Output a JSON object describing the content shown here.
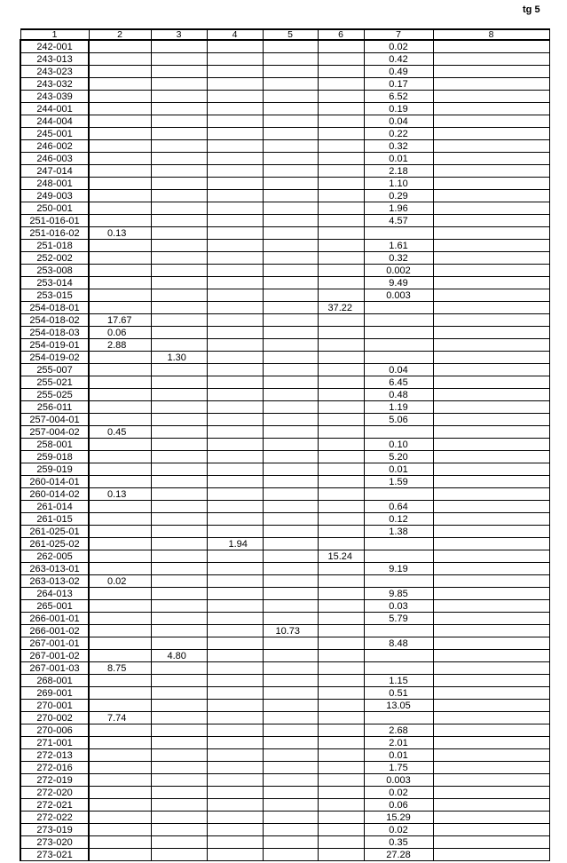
{
  "page_label": "tg 5",
  "headers": [
    "1",
    "2",
    "3",
    "4",
    "5",
    "6",
    "7",
    "8"
  ],
  "rows": [
    [
      "242-001",
      "",
      "",
      "",
      "",
      "",
      "0.02",
      ""
    ],
    [
      "243-013",
      "",
      "",
      "",
      "",
      "",
      "0.42",
      ""
    ],
    [
      "243-023",
      "",
      "",
      "",
      "",
      "",
      "0.49",
      ""
    ],
    [
      "243-032",
      "",
      "",
      "",
      "",
      "",
      "0.17",
      ""
    ],
    [
      "243-039",
      "",
      "",
      "",
      "",
      "",
      "6.52",
      ""
    ],
    [
      "244-001",
      "",
      "",
      "",
      "",
      "",
      "0.19",
      ""
    ],
    [
      "244-004",
      "",
      "",
      "",
      "",
      "",
      "0.04",
      ""
    ],
    [
      "245-001",
      "",
      "",
      "",
      "",
      "",
      "0.22",
      ""
    ],
    [
      "246-002",
      "",
      "",
      "",
      "",
      "",
      "0.32",
      ""
    ],
    [
      "246-003",
      "",
      "",
      "",
      "",
      "",
      "0.01",
      ""
    ],
    [
      "247-014",
      "",
      "",
      "",
      "",
      "",
      "2.18",
      ""
    ],
    [
      "248-001",
      "",
      "",
      "",
      "",
      "",
      "1.10",
      ""
    ],
    [
      "249-003",
      "",
      "",
      "",
      "",
      "",
      "0.29",
      ""
    ],
    [
      "250-001",
      "",
      "",
      "",
      "",
      "",
      "1.96",
      ""
    ],
    [
      "251-016-01",
      "",
      "",
      "",
      "",
      "",
      "4.57",
      ""
    ],
    [
      "251-016-02",
      "0.13",
      "",
      "",
      "",
      "",
      "",
      ""
    ],
    [
      "251-018",
      "",
      "",
      "",
      "",
      "",
      "1.61",
      ""
    ],
    [
      "252-002",
      "",
      "",
      "",
      "",
      "",
      "0.32",
      ""
    ],
    [
      "253-008",
      "",
      "",
      "",
      "",
      "",
      "0.002",
      ""
    ],
    [
      "253-014",
      "",
      "",
      "",
      "",
      "",
      "9.49",
      ""
    ],
    [
      "253-015",
      "",
      "",
      "",
      "",
      "",
      "0.003",
      ""
    ],
    [
      "254-018-01",
      "",
      "",
      "",
      "",
      "37.22",
      "",
      ""
    ],
    [
      "254-018-02",
      "17.67",
      "",
      "",
      "",
      "",
      "",
      ""
    ],
    [
      "254-018-03",
      "0.06",
      "",
      "",
      "",
      "",
      "",
      ""
    ],
    [
      "254-019-01",
      "2.88",
      "",
      "",
      "",
      "",
      "",
      ""
    ],
    [
      "254-019-02",
      "",
      "1.30",
      "",
      "",
      "",
      "",
      ""
    ],
    [
      "255-007",
      "",
      "",
      "",
      "",
      "",
      "0.04",
      ""
    ],
    [
      "255-021",
      "",
      "",
      "",
      "",
      "",
      "6.45",
      ""
    ],
    [
      "255-025",
      "",
      "",
      "",
      "",
      "",
      "0.48",
      ""
    ],
    [
      "256-011",
      "",
      "",
      "",
      "",
      "",
      "1.19",
      ""
    ],
    [
      "257-004-01",
      "",
      "",
      "",
      "",
      "",
      "5.06",
      ""
    ],
    [
      "257-004-02",
      "0.45",
      "",
      "",
      "",
      "",
      "",
      ""
    ],
    [
      "258-001",
      "",
      "",
      "",
      "",
      "",
      "0.10",
      ""
    ],
    [
      "259-018",
      "",
      "",
      "",
      "",
      "",
      "5.20",
      ""
    ],
    [
      "259-019",
      "",
      "",
      "",
      "",
      "",
      "0.01",
      ""
    ],
    [
      "260-014-01",
      "",
      "",
      "",
      "",
      "",
      "1.59",
      ""
    ],
    [
      "260-014-02",
      "0.13",
      "",
      "",
      "",
      "",
      "",
      ""
    ],
    [
      "261-014",
      "",
      "",
      "",
      "",
      "",
      "0.64",
      ""
    ],
    [
      "261-015",
      "",
      "",
      "",
      "",
      "",
      "0.12",
      ""
    ],
    [
      "261-025-01",
      "",
      "",
      "",
      "",
      "",
      "1.38",
      ""
    ],
    [
      "261-025-02",
      "",
      "",
      "1.94",
      "",
      "",
      "",
      ""
    ],
    [
      "262-005",
      "",
      "",
      "",
      "",
      "15.24",
      "",
      ""
    ],
    [
      "263-013-01",
      "",
      "",
      "",
      "",
      "",
      "9.19",
      ""
    ],
    [
      "263-013-02",
      "0.02",
      "",
      "",
      "",
      "",
      "",
      ""
    ],
    [
      "264-013",
      "",
      "",
      "",
      "",
      "",
      "9.85",
      ""
    ],
    [
      "265-001",
      "",
      "",
      "",
      "",
      "",
      "0.03",
      ""
    ],
    [
      "266-001-01",
      "",
      "",
      "",
      "",
      "",
      "5.79",
      ""
    ],
    [
      "266-001-02",
      "",
      "",
      "",
      "10.73",
      "",
      "",
      ""
    ],
    [
      "267-001-01",
      "",
      "",
      "",
      "",
      "",
      "8.48",
      ""
    ],
    [
      "267-001-02",
      "",
      "4.80",
      "",
      "",
      "",
      "",
      ""
    ],
    [
      "267-001-03",
      "8.75",
      "",
      "",
      "",
      "",
      "",
      ""
    ],
    [
      "268-001",
      "",
      "",
      "",
      "",
      "",
      "1.15",
      ""
    ],
    [
      "269-001",
      "",
      "",
      "",
      "",
      "",
      "0.51",
      ""
    ],
    [
      "270-001",
      "",
      "",
      "",
      "",
      "",
      "13.05",
      ""
    ],
    [
      "270-002",
      "7.74",
      "",
      "",
      "",
      "",
      "",
      ""
    ],
    [
      "270-006",
      "",
      "",
      "",
      "",
      "",
      "2.68",
      ""
    ],
    [
      "271-001",
      "",
      "",
      "",
      "",
      "",
      "2.01",
      ""
    ],
    [
      "272-013",
      "",
      "",
      "",
      "",
      "",
      "0.01",
      ""
    ],
    [
      "272-016",
      "",
      "",
      "",
      "",
      "",
      "1.75",
      ""
    ],
    [
      "272-019",
      "",
      "",
      "",
      "",
      "",
      "0.003",
      ""
    ],
    [
      "272-020",
      "",
      "",
      "",
      "",
      "",
      "0.02",
      ""
    ],
    [
      "272-021",
      "",
      "",
      "",
      "",
      "",
      "0.06",
      ""
    ],
    [
      "272-022",
      "",
      "",
      "",
      "",
      "",
      "15.29",
      ""
    ],
    [
      "273-019",
      "",
      "",
      "",
      "",
      "",
      "0.02",
      ""
    ],
    [
      "273-020",
      "",
      "",
      "",
      "",
      "",
      "0.35",
      ""
    ],
    [
      "273-021",
      "",
      "",
      "",
      "",
      "",
      "27.28",
      ""
    ]
  ]
}
